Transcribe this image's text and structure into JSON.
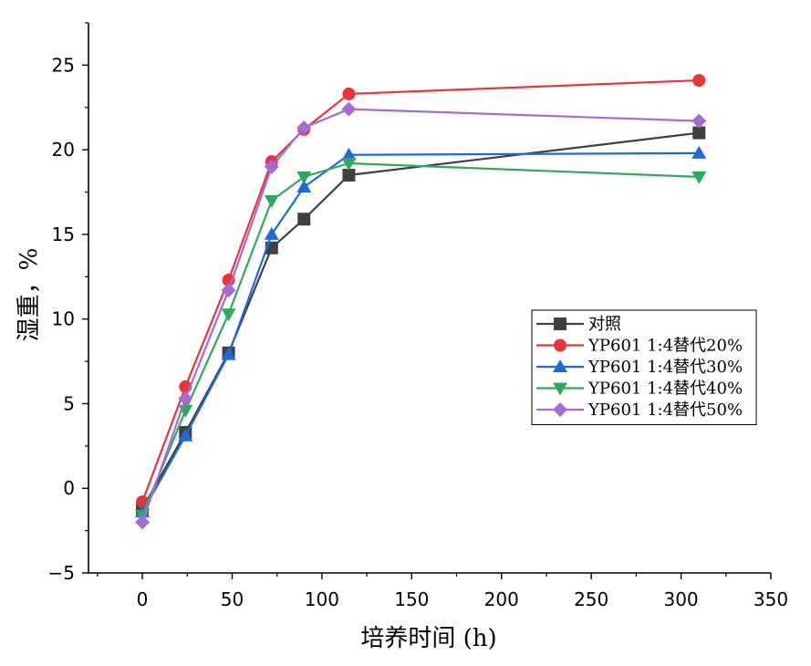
{
  "chart_data": {
    "type": "line",
    "title": "",
    "xlabel": "培养时间 (h)",
    "ylabel": "湿重，%",
    "xlim": [
      -30,
      350
    ],
    "ylim": [
      -5,
      27.5
    ],
    "xticks": [
      0,
      50,
      100,
      150,
      200,
      250,
      300,
      350
    ],
    "yticks": [
      -5,
      0,
      5,
      10,
      15,
      20,
      25
    ],
    "x": [
      0,
      24,
      48,
      72,
      90,
      115,
      310
    ],
    "legend_position": "right-middle",
    "series": [
      {
        "name": "对照",
        "color": "#404040",
        "marker": "square",
        "values": [
          -1.2,
          3.3,
          8.0,
          14.2,
          15.9,
          18.5,
          21.0
        ]
      },
      {
        "name": "YP601 1:4替代20%",
        "color": "#e8343b",
        "marker": "circle",
        "values": [
          -0.8,
          6.0,
          12.3,
          19.3,
          21.2,
          23.3,
          24.1
        ]
      },
      {
        "name": "YP601 1:4替代30%",
        "color": "#1f6ad6",
        "marker": "triangle-up",
        "values": [
          -1.4,
          3.1,
          7.9,
          15.0,
          17.8,
          19.7,
          19.8
        ]
      },
      {
        "name": "YP601 1:4替代40%",
        "color": "#2eaa5c",
        "marker": "triangle-down",
        "values": [
          -1.6,
          4.6,
          10.3,
          17.0,
          18.4,
          19.2,
          18.4
        ]
      },
      {
        "name": "YP601 1:4替代50%",
        "color": "#a66ad6",
        "marker": "diamond",
        "values": [
          -2.0,
          5.3,
          11.7,
          19.0,
          21.3,
          22.4,
          21.7
        ]
      }
    ]
  }
}
